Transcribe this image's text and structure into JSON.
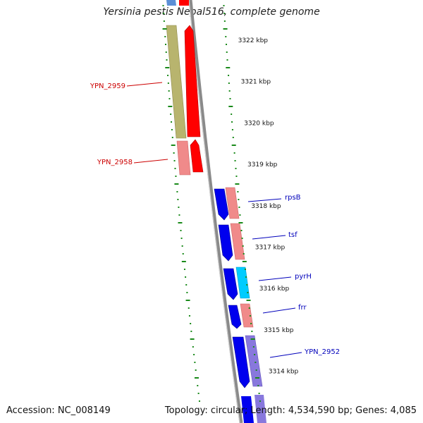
{
  "title": "Yersinia pestis Nepal516, complete genome",
  "accession": "Accession: NC_008149",
  "summary": "Topology: circular; Length: 4,534,590 bp; Genes: 4,085",
  "colors": {
    "reverse_label": "#cc0000",
    "forward_label": "#0000bb",
    "tick": "#1a8a1a",
    "backbone": "#888888"
  },
  "ticks": [
    {
      "label": "3322 kbp"
    },
    {
      "label": "3321 kbp"
    },
    {
      "label": "3320 kbp"
    },
    {
      "label": "3319 kbp"
    },
    {
      "label": "3318 kbp"
    },
    {
      "label": "3317 kbp"
    },
    {
      "label": "3316 kbp"
    },
    {
      "label": "3315 kbp"
    },
    {
      "label": "3314 kbp"
    }
  ],
  "gene_labels": [
    {
      "name": "YPN_2959",
      "strand": "reverse"
    },
    {
      "name": "YPN_2958",
      "strand": "reverse"
    },
    {
      "name": "rpsB",
      "strand": "forward"
    },
    {
      "name": "tsf",
      "strand": "forward"
    },
    {
      "name": "pyrH",
      "strand": "forward"
    },
    {
      "name": "frr",
      "strand": "forward"
    },
    {
      "name": "YPN_2952",
      "strand": "forward"
    }
  ]
}
